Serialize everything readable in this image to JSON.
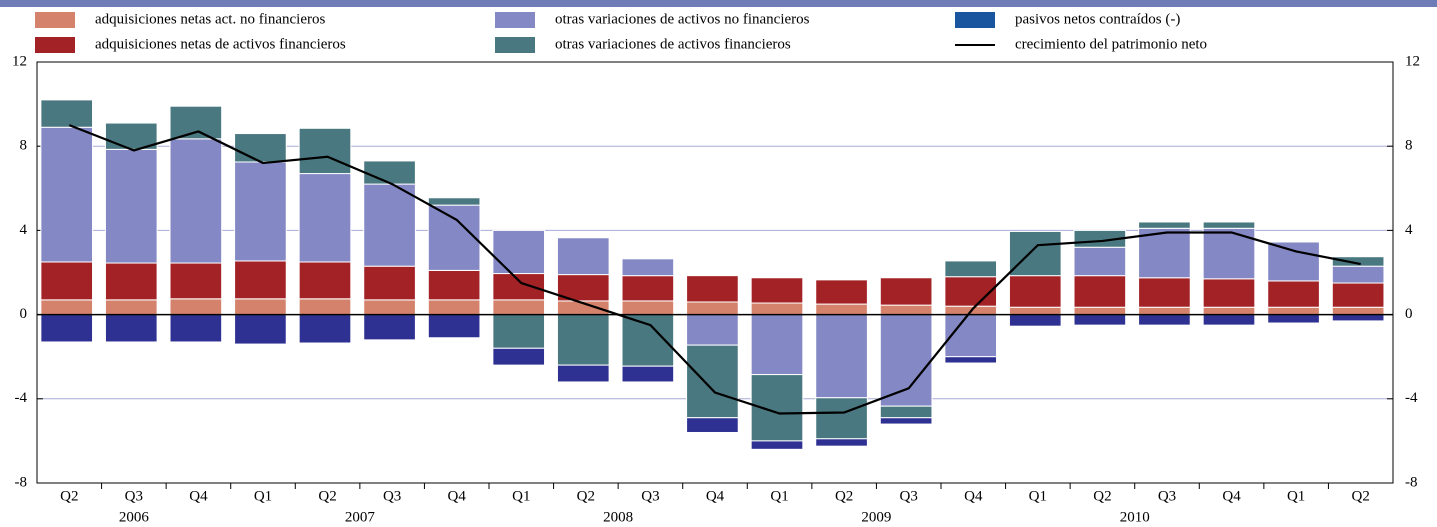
{
  "chart_data": {
    "type": "stacked_bar_line",
    "categories": [
      "Q2",
      "Q3",
      "Q4",
      "Q1",
      "Q2",
      "Q3",
      "Q4",
      "Q1",
      "Q2",
      "Q3",
      "Q4",
      "Q1",
      "Q2",
      "Q3",
      "Q4",
      "Q1",
      "Q2",
      "Q3",
      "Q4",
      "Q1",
      "Q2"
    ],
    "year_groups": [
      {
        "label": "2006",
        "span": 3
      },
      {
        "label": "2007",
        "span": 4
      },
      {
        "label": "2008",
        "span": 4
      },
      {
        "label": "2009",
        "span": 4
      },
      {
        "label": "2010",
        "span": 4
      }
    ],
    "series": [
      {
        "name": "adquisiciones netas act. no financieros",
        "color": "#d4826c",
        "values": [
          0.7,
          0.7,
          0.75,
          0.75,
          0.75,
          0.7,
          0.7,
          0.7,
          0.65,
          0.65,
          0.6,
          0.55,
          0.5,
          0.45,
          0.4,
          0.35,
          0.35,
          0.35,
          0.35,
          0.35,
          0.35
        ]
      },
      {
        "name": "adquisiciones netas de activos financieros",
        "color": "#a32226",
        "values": [
          1.8,
          1.75,
          1.7,
          1.8,
          1.75,
          1.6,
          1.4,
          1.25,
          1.25,
          1.2,
          1.25,
          1.2,
          1.15,
          1.3,
          1.4,
          1.5,
          1.5,
          1.4,
          1.35,
          1.25,
          1.15
        ]
      },
      {
        "name": "otras variaciones de activos no financieros",
        "color": "#8488c4",
        "values": [
          6.4,
          5.4,
          5.9,
          4.7,
          4.2,
          3.9,
          3.1,
          2.05,
          1.75,
          0.8,
          -1.45,
          -2.85,
          -3.95,
          -4.35,
          -2.0,
          0,
          1.35,
          2.35,
          2.4,
          1.85,
          0.8
        ]
      },
      {
        "name": "otras variaciones de activos financieros",
        "color": "#4a7880",
        "values": [
          1.3,
          1.25,
          1.55,
          1.35,
          2.15,
          1.1,
          0.35,
          -1.6,
          -2.4,
          -2.45,
          -3.45,
          -3.15,
          -1.95,
          -0.55,
          0.75,
          2.1,
          0.8,
          0.3,
          0.3,
          0,
          0.45
        ]
      },
      {
        "name": "pasivos netos contraídos (-)",
        "color": "#2e3192",
        "legend_color": "#1a56a0",
        "values": [
          -1.3,
          -1.3,
          -1.3,
          -1.4,
          -1.35,
          -1.2,
          -1.1,
          -0.8,
          -0.8,
          -0.75,
          -0.7,
          -0.4,
          -0.35,
          -0.3,
          -0.3,
          -0.55,
          -0.5,
          -0.5,
          -0.5,
          -0.4,
          -0.3
        ]
      },
      {
        "name": "crecimiento del patrimonio neto",
        "color": "#000000",
        "kind": "line",
        "values": [
          9.0,
          7.8,
          8.7,
          7.2,
          7.5,
          6.2,
          4.5,
          1.5,
          0.5,
          -0.5,
          -3.7,
          -4.7,
          -4.65,
          -3.5,
          0.3,
          3.3,
          3.5,
          3.9,
          3.9,
          3.0,
          2.4
        ]
      }
    ],
    "ylim": [
      -8,
      12
    ],
    "yticks": [
      -8,
      -4,
      0,
      4,
      8,
      12
    ],
    "grid": true
  }
}
